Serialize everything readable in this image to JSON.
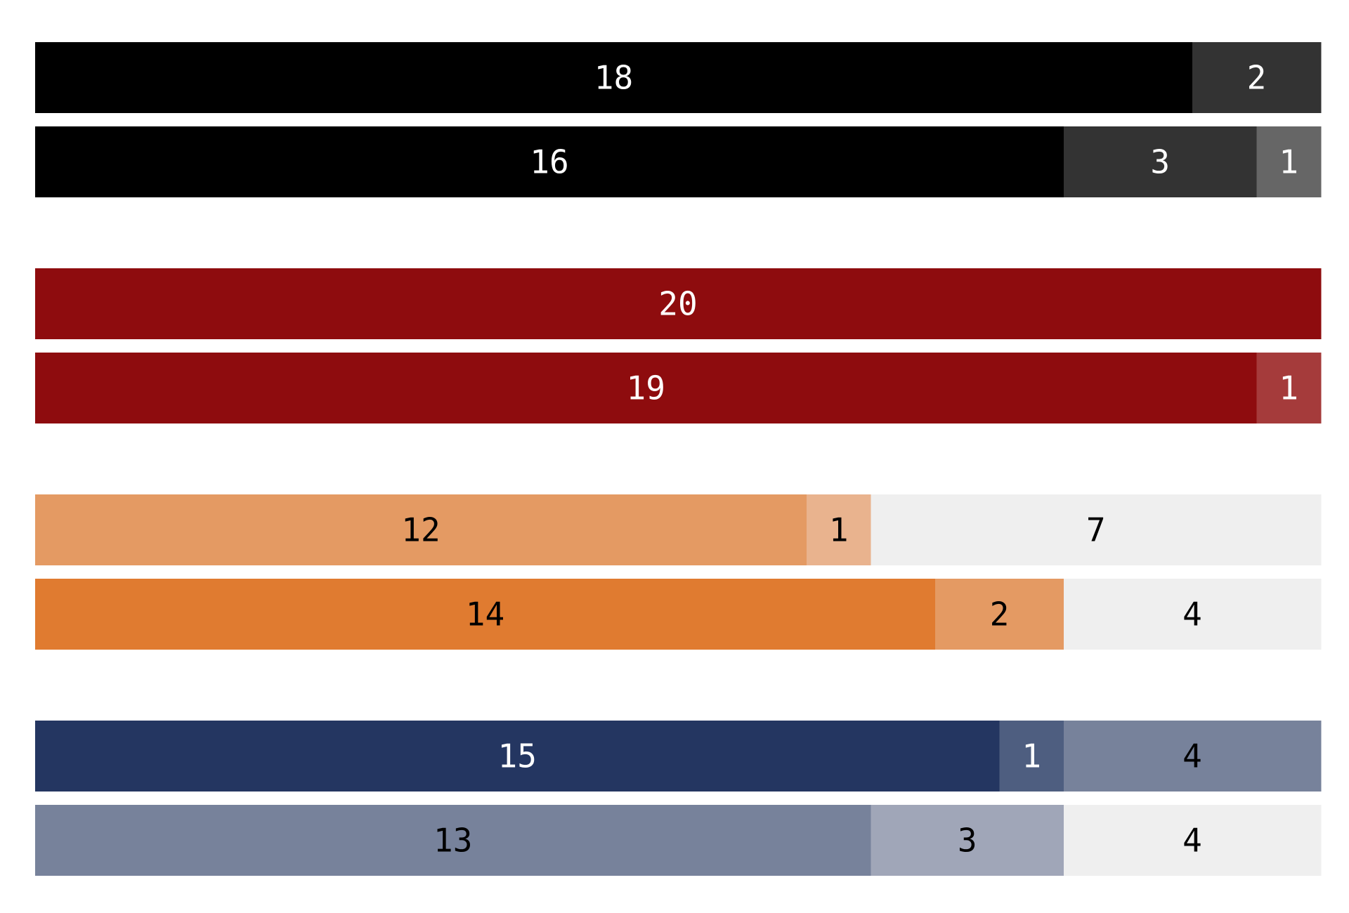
{
  "chart_data": {
    "type": "bar",
    "orientation": "horizontal",
    "stacked": true,
    "total_per_row": 20,
    "xlim": [
      0,
      20
    ],
    "grid": false,
    "legend": "none",
    "title": "",
    "xlabel": "",
    "ylabel": "",
    "groups": [
      {
        "rows": [
          {
            "segments": [
              {
                "value": 18,
                "color": "#000000",
                "text_color": "#ffffff"
              },
              {
                "value": 2,
                "color": "#333333",
                "text_color": "#ffffff"
              }
            ]
          },
          {
            "segments": [
              {
                "value": 16,
                "color": "#000000",
                "text_color": "#ffffff"
              },
              {
                "value": 3,
                "color": "#333333",
                "text_color": "#ffffff"
              },
              {
                "value": 1,
                "color": "#666666",
                "text_color": "#ffffff"
              }
            ]
          }
        ]
      },
      {
        "rows": [
          {
            "segments": [
              {
                "value": 20,
                "color": "#8e0c0e",
                "text_color": "#ffffff"
              }
            ]
          },
          {
            "segments": [
              {
                "value": 19,
                "color": "#8e0c0e",
                "text_color": "#ffffff"
              },
              {
                "value": 1,
                "color": "#a53b3b",
                "text_color": "#ffffff"
              }
            ]
          }
        ]
      },
      {
        "rows": [
          {
            "segments": [
              {
                "value": 12,
                "color": "#e49a63",
                "text_color": "#000000"
              },
              {
                "value": 1,
                "color": "#e9b38e",
                "text_color": "#000000"
              },
              {
                "value": 7,
                "color": "#efefef",
                "text_color": "#000000"
              }
            ]
          },
          {
            "segments": [
              {
                "value": 14,
                "color": "#e07b30",
                "text_color": "#000000"
              },
              {
                "value": 2,
                "color": "#e49a63",
                "text_color": "#000000"
              },
              {
                "value": 4,
                "color": "#efefef",
                "text_color": "#000000"
              }
            ]
          }
        ]
      },
      {
        "rows": [
          {
            "segments": [
              {
                "value": 15,
                "color": "#243661",
                "text_color": "#ffffff"
              },
              {
                "value": 1,
                "color": "#4e5e80",
                "text_color": "#ffffff"
              },
              {
                "value": 4,
                "color": "#77829b",
                "text_color": "#000000"
              }
            ]
          },
          {
            "segments": [
              {
                "value": 13,
                "color": "#77829b",
                "text_color": "#000000"
              },
              {
                "value": 3,
                "color": "#a0a6b8",
                "text_color": "#000000"
              },
              {
                "value": 4,
                "color": "#efefef",
                "text_color": "#000000"
              }
            ]
          }
        ]
      }
    ]
  }
}
